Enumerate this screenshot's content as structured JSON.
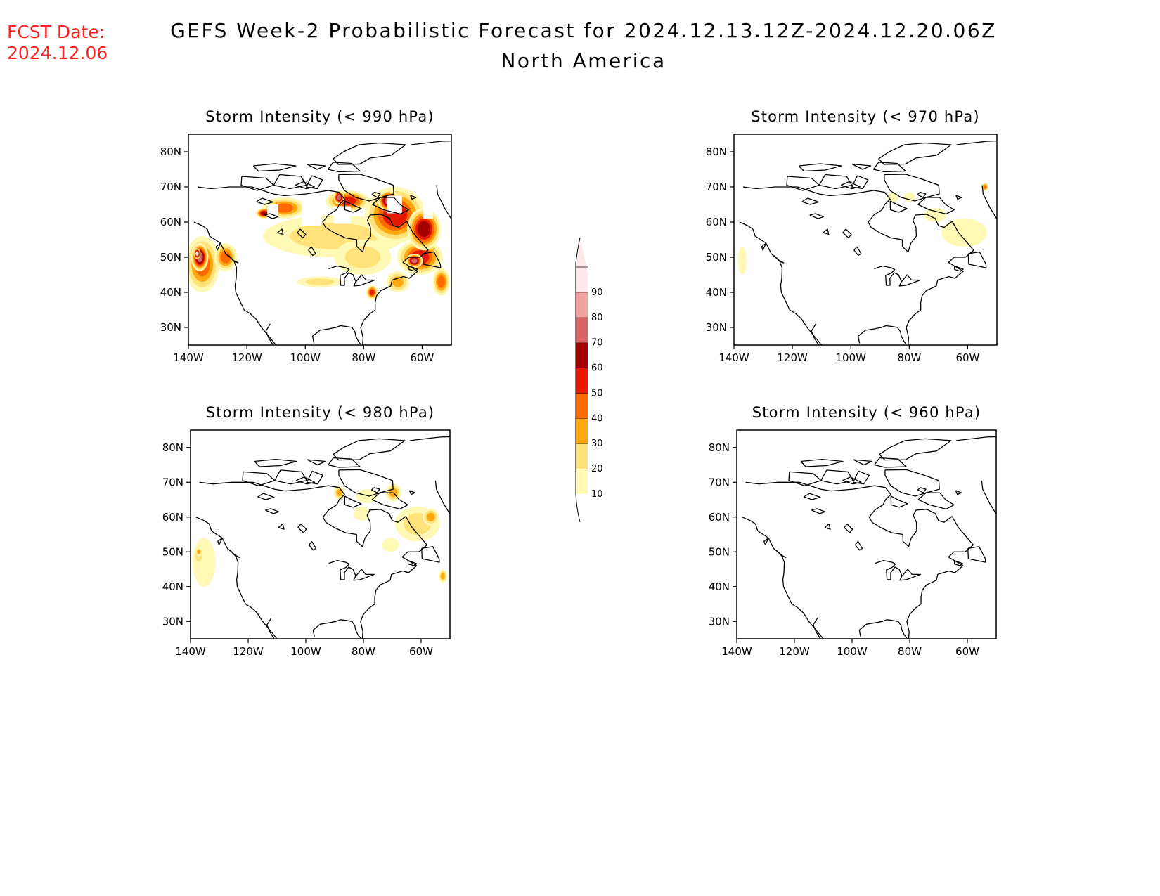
{
  "header": {
    "fcst_label": "FCST Date:",
    "fcst_date": "2024.12.06",
    "title": "GEFS Week-2 Probabilistic Forecast for 2024.12.13.12Z-2024.12.20.06Z",
    "subtitle": "North America"
  },
  "colorbar": {
    "levels": [
      "10",
      "20",
      "30",
      "40",
      "50",
      "60",
      "70",
      "80",
      "90"
    ],
    "colors": [
      "#fff9b5",
      "#ffe27a",
      "#ffa812",
      "#ff6a00",
      "#e51a00",
      "#a50000",
      "#da6464",
      "#f3a2a2",
      "#ffe8ea"
    ]
  },
  "chart_data": [
    {
      "type": "heatmap",
      "title": "Storm Intensity (< 990 hPa)",
      "xticks": [
        "140W",
        "120W",
        "100W",
        "80W",
        "60W"
      ],
      "yticks": [
        "80N",
        "70N",
        "60N",
        "50N",
        "40N",
        "30N"
      ],
      "lon_range": [
        -140,
        -50
      ],
      "lat_range": [
        25,
        85
      ],
      "blobs": [
        {
          "lon": -136,
          "lat": 48,
          "rlon": 6,
          "rlat": 8,
          "level": 3
        },
        {
          "lon": -137,
          "lat": 50,
          "rlon": 3,
          "rlat": 4,
          "level": 6
        },
        {
          "lon": -138,
          "lat": 51,
          "rlon": 1.2,
          "rlat": 1.5,
          "level": 8
        },
        {
          "lon": -128,
          "lat": 50,
          "rlon": 4,
          "rlat": 4,
          "level": 3
        },
        {
          "lon": -108,
          "lat": 64,
          "rlon": 8,
          "rlat": 3,
          "level": 3
        },
        {
          "lon": -115,
          "lat": 62.5,
          "rlon": 3,
          "rlat": 1.5,
          "level": 5
        },
        {
          "lon": -85,
          "lat": 66,
          "rlon": 8,
          "rlat": 3,
          "level": 4
        },
        {
          "lon": -88,
          "lat": 67,
          "rlon": 2,
          "rlat": 2,
          "level": 6
        },
        {
          "lon": -68,
          "lat": 62,
          "rlon": 11,
          "rlat": 8,
          "level": 4
        },
        {
          "lon": -70,
          "lat": 66,
          "rlon": 4,
          "rlat": 3,
          "level": 6
        },
        {
          "lon": -58,
          "lat": 58,
          "rlon": 6,
          "rlat": 6,
          "level": 5
        },
        {
          "lon": -60,
          "lat": 50,
          "rlon": 8,
          "rlat": 5,
          "level": 4
        },
        {
          "lon": -62,
          "lat": 49,
          "rlon": 3,
          "rlat": 2,
          "level": 6
        },
        {
          "lon": -90,
          "lat": 56,
          "rlon": 25,
          "rlat": 6,
          "level": 1
        },
        {
          "lon": -80,
          "lat": 50,
          "rlon": 10,
          "rlat": 5,
          "level": 1
        },
        {
          "lon": -95,
          "lat": 43,
          "rlon": 8,
          "rlat": 1.5,
          "level": 1
        },
        {
          "lon": -68,
          "lat": 43,
          "rlon": 4,
          "rlat": 3,
          "level": 2
        },
        {
          "lon": -77,
          "lat": 40,
          "rlon": 2,
          "rlat": 2,
          "level": 4
        },
        {
          "lon": -53,
          "lat": 43,
          "rlon": 3,
          "rlat": 4,
          "level": 3
        }
      ],
      "masked": [
        {
          "lon": -112,
          "lat": 62.5,
          "dlon": 4,
          "dlat": 5
        },
        {
          "lon": -98,
          "lat": 63,
          "dlon": 7,
          "dlat": 8
        },
        {
          "lon": -87,
          "lat": 62,
          "dlon": 6,
          "dlat": 5
        },
        {
          "lon": -68,
          "lat": 65,
          "dlon": 5,
          "dlat": 5
        },
        {
          "lon": -56,
          "lat": 63,
          "dlon": 3,
          "dlat": 4
        }
      ]
    },
    {
      "type": "heatmap",
      "title": "Storm Intensity (< 970 hPa)",
      "xticks": [
        "140W",
        "120W",
        "100W",
        "80W",
        "60W"
      ],
      "yticks": [
        "80N",
        "70N",
        "60N",
        "50N",
        "40N",
        "30N"
      ],
      "lon_range": [
        -140,
        -50
      ],
      "lat_range": [
        25,
        85
      ],
      "blobs": [
        {
          "lon": -138,
          "lat": 49,
          "rlon": 1.5,
          "rlat": 4,
          "level": 0
        },
        {
          "lon": -85,
          "lat": 67,
          "rlon": 2,
          "rlat": 1.5,
          "level": 0
        },
        {
          "lon": -79,
          "lat": 67,
          "rlon": 2,
          "rlat": 1.5,
          "level": 0
        },
        {
          "lon": -70,
          "lat": 62,
          "rlon": 4,
          "rlat": 2,
          "level": 0
        },
        {
          "lon": -60,
          "lat": 57,
          "rlon": 8,
          "rlat": 4,
          "level": 0
        },
        {
          "lon": -51,
          "lat": 70,
          "rlon": 1.2,
          "rlat": 1.2,
          "level": 3
        }
      ],
      "masked": []
    },
    {
      "type": "heatmap",
      "title": "Storm Intensity (< 980 hPa)",
      "xticks": [
        "140W",
        "120W",
        "100W",
        "80W",
        "60W"
      ],
      "yticks": [
        "80N",
        "70N",
        "60N",
        "50N",
        "40N",
        "30N"
      ],
      "lon_range": [
        -140,
        -50
      ],
      "lat_range": [
        25,
        85
      ],
      "blobs": [
        {
          "lon": -136,
          "lat": 47,
          "rlon": 4,
          "rlat": 7,
          "level": 0
        },
        {
          "lon": -138,
          "lat": 49,
          "rlon": 2,
          "rlat": 3,
          "level": 1
        },
        {
          "lon": -138,
          "lat": 50,
          "rlon": 1.2,
          "rlat": 1.2,
          "level": 2
        },
        {
          "lon": -88,
          "lat": 67,
          "rlon": 2,
          "rlat": 2,
          "level": 2
        },
        {
          "lon": -78,
          "lat": 66,
          "rlon": 4,
          "rlat": 2,
          "level": 0
        },
        {
          "lon": -68,
          "lat": 67,
          "rlon": 3,
          "rlat": 2.5,
          "level": 2
        },
        {
          "lon": -60,
          "lat": 58,
          "rlon": 8,
          "rlat": 5,
          "level": 1
        },
        {
          "lon": -55,
          "lat": 60,
          "rlon": 3,
          "rlat": 2.5,
          "level": 2
        },
        {
          "lon": -80,
          "lat": 61,
          "rlon": 3,
          "rlat": 2,
          "level": 0
        },
        {
          "lon": -70,
          "lat": 52,
          "rlon": 3,
          "rlat": 2,
          "level": 0
        },
        {
          "lon": -52,
          "lat": 43,
          "rlon": 1.5,
          "rlat": 2,
          "level": 2
        }
      ],
      "masked": []
    },
    {
      "type": "heatmap",
      "title": "Storm Intensity (< 960 hPa)",
      "xticks": [
        "140W",
        "120W",
        "100W",
        "80W",
        "60W"
      ],
      "yticks": [
        "80N",
        "70N",
        "60N",
        "50N",
        "40N",
        "30N"
      ],
      "lon_range": [
        -140,
        -50
      ],
      "lat_range": [
        25,
        85
      ],
      "blobs": [],
      "masked": []
    }
  ]
}
